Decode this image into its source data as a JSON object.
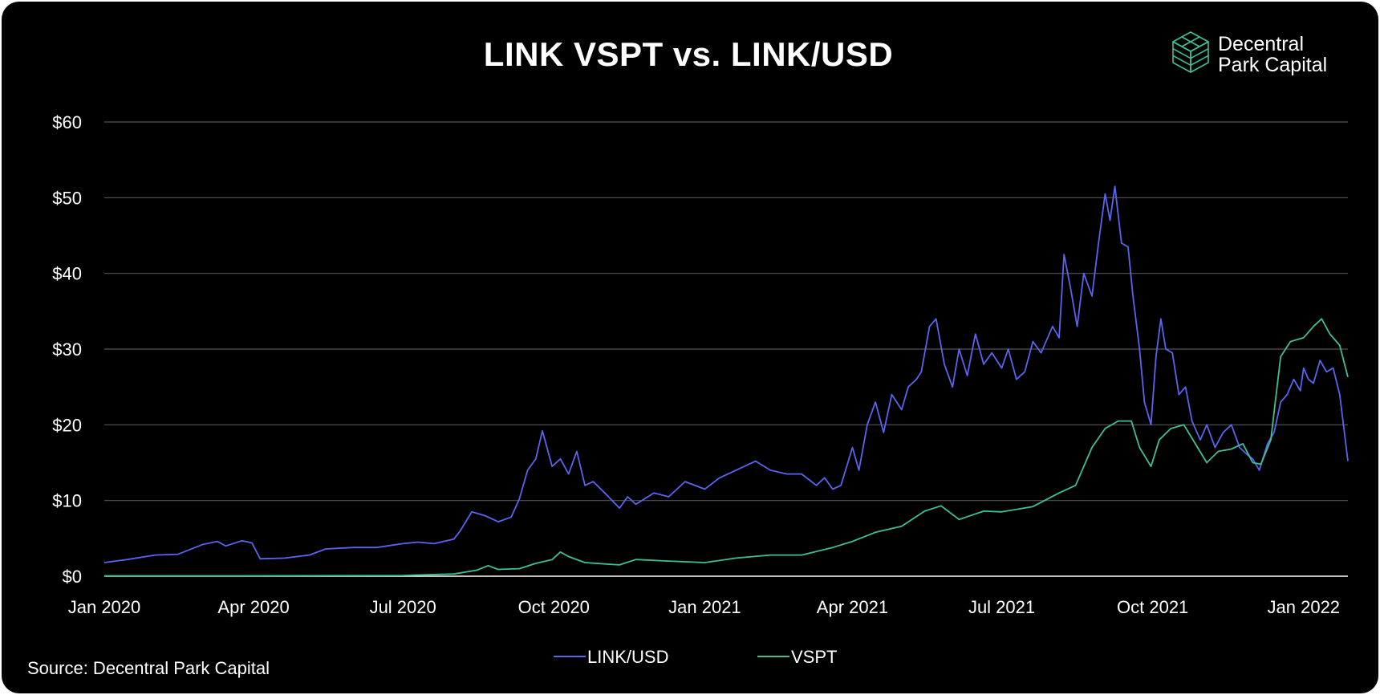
{
  "chart_data": {
    "type": "line",
    "title": "LINK VSPT vs. LINK/USD",
    "xlabel": "",
    "ylabel": "",
    "ylim": [
      0,
      60
    ],
    "yticks": [
      0,
      10,
      20,
      30,
      40,
      50,
      60
    ],
    "ytick_labels": [
      "$0",
      "$10",
      "$20",
      "$30",
      "$40",
      "$50",
      "$60"
    ],
    "xlim": [
      "2020-01-01",
      "2022-01-28"
    ],
    "xticks": [
      "2020-01-01",
      "2020-04-01",
      "2020-07-01",
      "2020-10-01",
      "2021-01-01",
      "2021-04-01",
      "2021-07-01",
      "2021-10-01",
      "2022-01-01"
    ],
    "xtick_labels": [
      "Jan 2020",
      "Apr 2020",
      "Jul 2020",
      "Oct 2020",
      "Jan 2021",
      "Apr 2021",
      "Jul 2021",
      "Oct 2021",
      "Jan 2022"
    ],
    "grid": true,
    "legend_position": "bottom-center",
    "series": [
      {
        "name": "LINK/USD",
        "color": "#5b64ee",
        "points": [
          [
            "2020-01-01",
            1.8
          ],
          [
            "2020-01-15",
            2.2
          ],
          [
            "2020-02-01",
            2.8
          ],
          [
            "2020-02-15",
            2.9
          ],
          [
            "2020-03-01",
            4.2
          ],
          [
            "2020-03-10",
            4.6
          ],
          [
            "2020-03-15",
            4.0
          ],
          [
            "2020-03-25",
            4.7
          ],
          [
            "2020-03-31",
            4.4
          ],
          [
            "2020-04-05",
            2.3
          ],
          [
            "2020-04-20",
            2.4
          ],
          [
            "2020-05-05",
            2.8
          ],
          [
            "2020-05-15",
            3.6
          ],
          [
            "2020-06-01",
            3.8
          ],
          [
            "2020-06-15",
            3.8
          ],
          [
            "2020-07-01",
            4.3
          ],
          [
            "2020-07-10",
            4.5
          ],
          [
            "2020-07-20",
            4.3
          ],
          [
            "2020-08-01",
            4.9
          ],
          [
            "2020-08-05",
            6.0
          ],
          [
            "2020-08-12",
            8.5
          ],
          [
            "2020-08-20",
            8.0
          ],
          [
            "2020-08-28",
            7.2
          ],
          [
            "2020-09-05",
            7.8
          ],
          [
            "2020-09-10",
            10.2
          ],
          [
            "2020-09-15",
            14.0
          ],
          [
            "2020-09-20",
            15.5
          ],
          [
            "2020-09-24",
            19.2
          ],
          [
            "2020-09-30",
            14.5
          ],
          [
            "2020-10-05",
            15.5
          ],
          [
            "2020-10-10",
            13.5
          ],
          [
            "2020-10-15",
            16.5
          ],
          [
            "2020-10-20",
            12.0
          ],
          [
            "2020-10-25",
            12.5
          ],
          [
            "2020-11-01",
            11.0
          ],
          [
            "2020-11-10",
            9.0
          ],
          [
            "2020-11-15",
            10.5
          ],
          [
            "2020-11-20",
            9.5
          ],
          [
            "2020-12-01",
            11.0
          ],
          [
            "2020-12-10",
            10.5
          ],
          [
            "2020-12-20",
            12.5
          ],
          [
            "2021-01-01",
            11.5
          ],
          [
            "2021-01-10",
            13.0
          ],
          [
            "2021-01-20",
            14.0
          ],
          [
            "2021-02-01",
            15.2
          ],
          [
            "2021-02-10",
            14.0
          ],
          [
            "2021-02-20",
            13.5
          ],
          [
            "2021-03-01",
            13.5
          ],
          [
            "2021-03-10",
            12.0
          ],
          [
            "2021-03-15",
            13.0
          ],
          [
            "2021-03-20",
            11.5
          ],
          [
            "2021-03-25",
            12.0
          ],
          [
            "2021-04-01",
            17.0
          ],
          [
            "2021-04-05",
            14.0
          ],
          [
            "2021-04-10",
            20.0
          ],
          [
            "2021-04-15",
            23.0
          ],
          [
            "2021-04-20",
            19.0
          ],
          [
            "2021-04-25",
            24.0
          ],
          [
            "2021-05-01",
            22.0
          ],
          [
            "2021-05-05",
            25.0
          ],
          [
            "2021-05-10",
            26.0
          ],
          [
            "2021-05-13",
            27.0
          ],
          [
            "2021-05-18",
            33.0
          ],
          [
            "2021-05-22",
            34.0
          ],
          [
            "2021-05-27",
            28.0
          ],
          [
            "2021-06-01",
            25.0
          ],
          [
            "2021-06-05",
            30.0
          ],
          [
            "2021-06-10",
            26.5
          ],
          [
            "2021-06-15",
            32.0
          ],
          [
            "2021-06-20",
            28.0
          ],
          [
            "2021-06-25",
            29.5
          ],
          [
            "2021-07-01",
            27.5
          ],
          [
            "2021-07-05",
            30.0
          ],
          [
            "2021-07-10",
            26.0
          ],
          [
            "2021-07-15",
            27.0
          ],
          [
            "2021-07-20",
            31.0
          ],
          [
            "2021-07-25",
            29.5
          ],
          [
            "2021-08-01",
            33.0
          ],
          [
            "2021-08-05",
            31.5
          ],
          [
            "2021-08-08",
            42.5
          ],
          [
            "2021-08-12",
            38.0
          ],
          [
            "2021-08-16",
            33.0
          ],
          [
            "2021-08-20",
            40.0
          ],
          [
            "2021-08-25",
            37.0
          ],
          [
            "2021-08-29",
            44.0
          ],
          [
            "2021-09-02",
            50.5
          ],
          [
            "2021-09-05",
            47.0
          ],
          [
            "2021-09-08",
            51.5
          ],
          [
            "2021-09-12",
            44.0
          ],
          [
            "2021-09-16",
            43.5
          ],
          [
            "2021-09-19",
            37.0
          ],
          [
            "2021-09-23",
            30.0
          ],
          [
            "2021-09-26",
            23.0
          ],
          [
            "2021-09-30",
            20.0
          ],
          [
            "2021-10-03",
            29.0
          ],
          [
            "2021-10-06",
            34.0
          ],
          [
            "2021-10-09",
            30.0
          ],
          [
            "2021-10-13",
            29.5
          ],
          [
            "2021-10-17",
            24.0
          ],
          [
            "2021-10-21",
            25.0
          ],
          [
            "2021-10-25",
            20.5
          ],
          [
            "2021-10-30",
            18.0
          ],
          [
            "2021-11-03",
            20.0
          ],
          [
            "2021-11-08",
            17.0
          ],
          [
            "2021-11-13",
            19.0
          ],
          [
            "2021-11-18",
            20.0
          ],
          [
            "2021-11-23",
            17.0
          ],
          [
            "2021-11-28",
            16.0
          ],
          [
            "2021-12-01",
            15.5
          ],
          [
            "2021-12-05",
            14.0
          ],
          [
            "2021-12-10",
            17.5
          ],
          [
            "2021-12-14",
            19.0
          ],
          [
            "2021-12-18",
            23.0
          ],
          [
            "2021-12-22",
            24.0
          ],
          [
            "2021-12-26",
            26.0
          ],
          [
            "2021-12-30",
            24.5
          ],
          [
            "2022-01-01",
            27.5
          ],
          [
            "2022-01-04",
            26.0
          ],
          [
            "2022-01-07",
            25.5
          ],
          [
            "2022-01-11",
            28.5
          ],
          [
            "2022-01-15",
            27.0
          ],
          [
            "2022-01-19",
            27.5
          ],
          [
            "2022-01-23",
            24.0
          ],
          [
            "2022-01-28",
            15.2
          ]
        ]
      },
      {
        "name": "VSPT",
        "color": "#3fbf98",
        "points": [
          [
            "2020-01-01",
            0.05
          ],
          [
            "2020-04-01",
            0.05
          ],
          [
            "2020-07-01",
            0.1
          ],
          [
            "2020-08-01",
            0.3
          ],
          [
            "2020-08-15",
            0.8
          ],
          [
            "2020-08-22",
            1.4
          ],
          [
            "2020-08-28",
            0.9
          ],
          [
            "2020-09-10",
            1.0
          ],
          [
            "2020-09-20",
            1.7
          ],
          [
            "2020-09-30",
            2.2
          ],
          [
            "2020-10-05",
            3.2
          ],
          [
            "2020-10-10",
            2.6
          ],
          [
            "2020-10-20",
            1.8
          ],
          [
            "2020-11-10",
            1.5
          ],
          [
            "2020-11-20",
            2.2
          ],
          [
            "2020-12-10",
            2.0
          ],
          [
            "2021-01-01",
            1.8
          ],
          [
            "2021-01-20",
            2.4
          ],
          [
            "2021-02-10",
            2.8
          ],
          [
            "2021-03-01",
            2.8
          ],
          [
            "2021-03-20",
            3.8
          ],
          [
            "2021-04-01",
            4.6
          ],
          [
            "2021-04-15",
            5.8
          ],
          [
            "2021-05-01",
            6.6
          ],
          [
            "2021-05-15",
            8.6
          ],
          [
            "2021-05-25",
            9.3
          ],
          [
            "2021-06-05",
            7.5
          ],
          [
            "2021-06-20",
            8.6
          ],
          [
            "2021-07-01",
            8.5
          ],
          [
            "2021-07-20",
            9.2
          ],
          [
            "2021-08-05",
            11.0
          ],
          [
            "2021-08-15",
            12.0
          ],
          [
            "2021-08-25",
            17.0
          ],
          [
            "2021-09-02",
            19.5
          ],
          [
            "2021-09-10",
            20.5
          ],
          [
            "2021-09-18",
            20.5
          ],
          [
            "2021-09-23",
            17.0
          ],
          [
            "2021-09-30",
            14.5
          ],
          [
            "2021-10-05",
            18.0
          ],
          [
            "2021-10-12",
            19.5
          ],
          [
            "2021-10-20",
            20.0
          ],
          [
            "2021-10-27",
            17.5
          ],
          [
            "2021-11-03",
            15.0
          ],
          [
            "2021-11-10",
            16.5
          ],
          [
            "2021-11-18",
            16.8
          ],
          [
            "2021-11-25",
            17.5
          ],
          [
            "2021-12-01",
            15.0
          ],
          [
            "2021-12-06",
            14.8
          ],
          [
            "2021-12-12",
            18.0
          ],
          [
            "2021-12-18",
            29.0
          ],
          [
            "2021-12-24",
            31.0
          ],
          [
            "2022-01-01",
            31.5
          ],
          [
            "2022-01-07",
            33.0
          ],
          [
            "2022-01-12",
            34.0
          ],
          [
            "2022-01-17",
            32.0
          ],
          [
            "2022-01-23",
            30.5
          ],
          [
            "2022-01-28",
            26.3
          ]
        ]
      }
    ]
  },
  "source_text": "Source: Decentral Park Capital",
  "logo": {
    "line1": "Decentral",
    "line2": "Park Capital",
    "icon": "isometric-cube-icon",
    "accent": "#3fbf98"
  }
}
